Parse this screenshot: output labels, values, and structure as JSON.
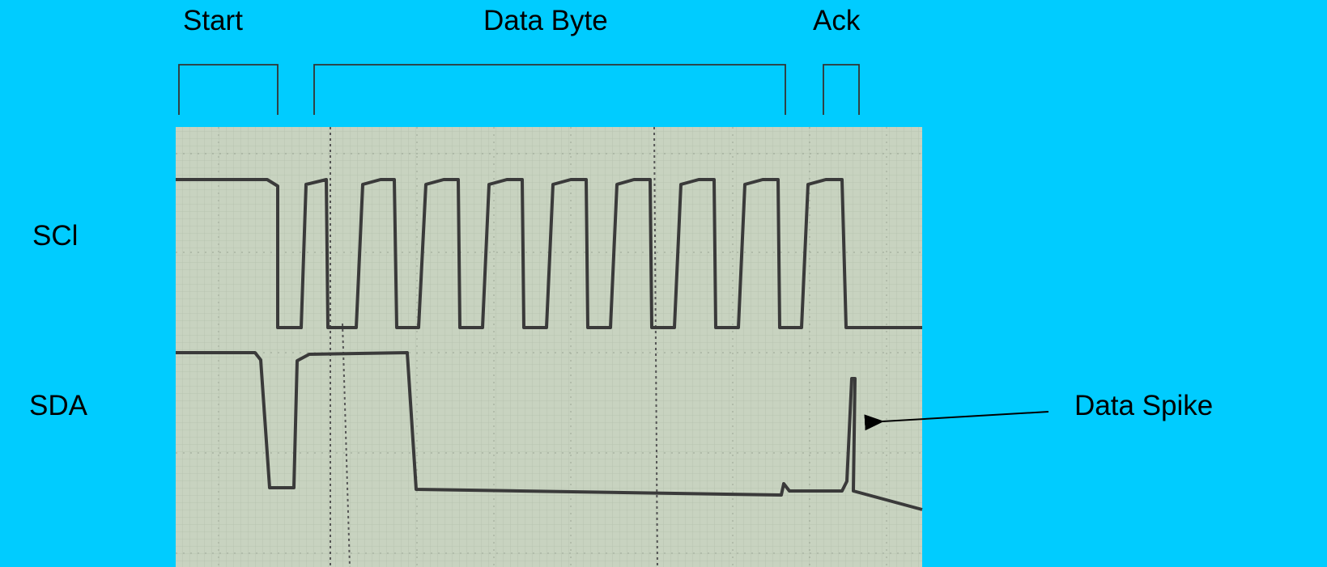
{
  "segments": {
    "start": "Start",
    "data_byte": "Data Byte",
    "ack": "Ack"
  },
  "signals": {
    "scl": "SCl",
    "sda": "SDA"
  },
  "annotation": {
    "spike": "Data Spike"
  },
  "colors": {
    "background": "#00ccff",
    "scope_screen": "#c8d3c0",
    "trace": "#3a3a3a",
    "bracket": "#333333"
  },
  "icons": {
    "arrow": "left-arrow-icon"
  }
}
